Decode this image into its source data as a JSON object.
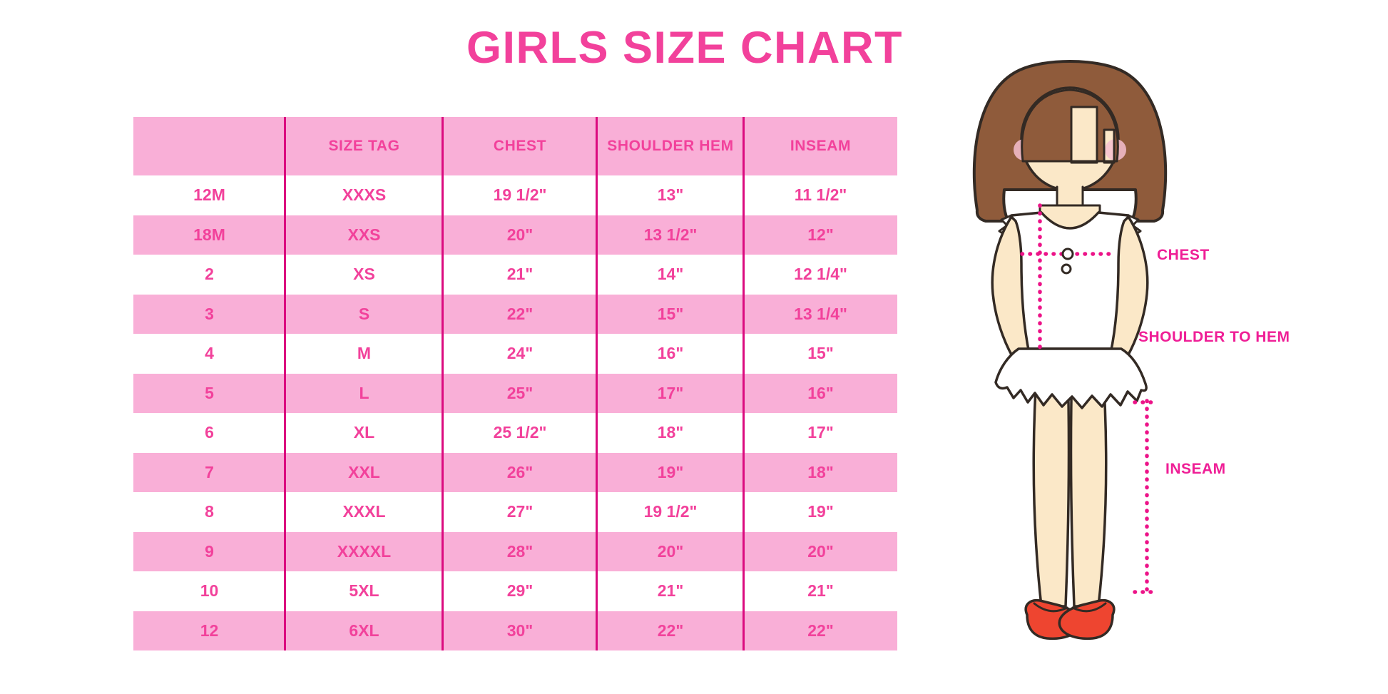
{
  "title": "GIRLS SIZE CHART",
  "figure": {
    "labels": {
      "chest": "CHEST",
      "shoulder_to_hem": "SHOULDER TO HEM",
      "inseam": "INSEAM"
    }
  },
  "colors": {
    "accent_pink": "#F2419B",
    "row_pink": "#F9AFD7",
    "divider_magenta": "#DB0B7F",
    "dotted_magenta": "#EC1388",
    "hair_brown": "#8F5B3B",
    "skin": "#FBE8C8",
    "shoe_red": "#EE4530"
  },
  "chart_data": {
    "type": "table",
    "title": "GIRLS SIZE CHART",
    "columns": [
      "",
      "SIZE TAG",
      "CHEST",
      "SHOULDER HEM",
      "INSEAM"
    ],
    "rows": [
      [
        "12M",
        "XXXS",
        "19 1/2\"",
        "13\"",
        "11 1/2\""
      ],
      [
        "18M",
        "XXS",
        "20\"",
        "13 1/2\"",
        "12\""
      ],
      [
        "2",
        "XS",
        "21\"",
        "14\"",
        "12 1/4\""
      ],
      [
        "3",
        "S",
        "22\"",
        "15\"",
        "13 1/4\""
      ],
      [
        "4",
        "M",
        "24\"",
        "16\"",
        "15\""
      ],
      [
        "5",
        "L",
        "25\"",
        "17\"",
        "16\""
      ],
      [
        "6",
        "XL",
        "25 1/2\"",
        "18\"",
        "17\""
      ],
      [
        "7",
        "XXL",
        "26\"",
        "19\"",
        "18\""
      ],
      [
        "8",
        "XXXL",
        "27\"",
        "19 1/2\"",
        "19\""
      ],
      [
        "9",
        "XXXXL",
        "28\"",
        "20\"",
        "20\""
      ],
      [
        "10",
        "5XL",
        "29\"",
        "21\"",
        "21\""
      ],
      [
        "12",
        "6XL",
        "30\"",
        "22\"",
        "22\""
      ]
    ]
  }
}
